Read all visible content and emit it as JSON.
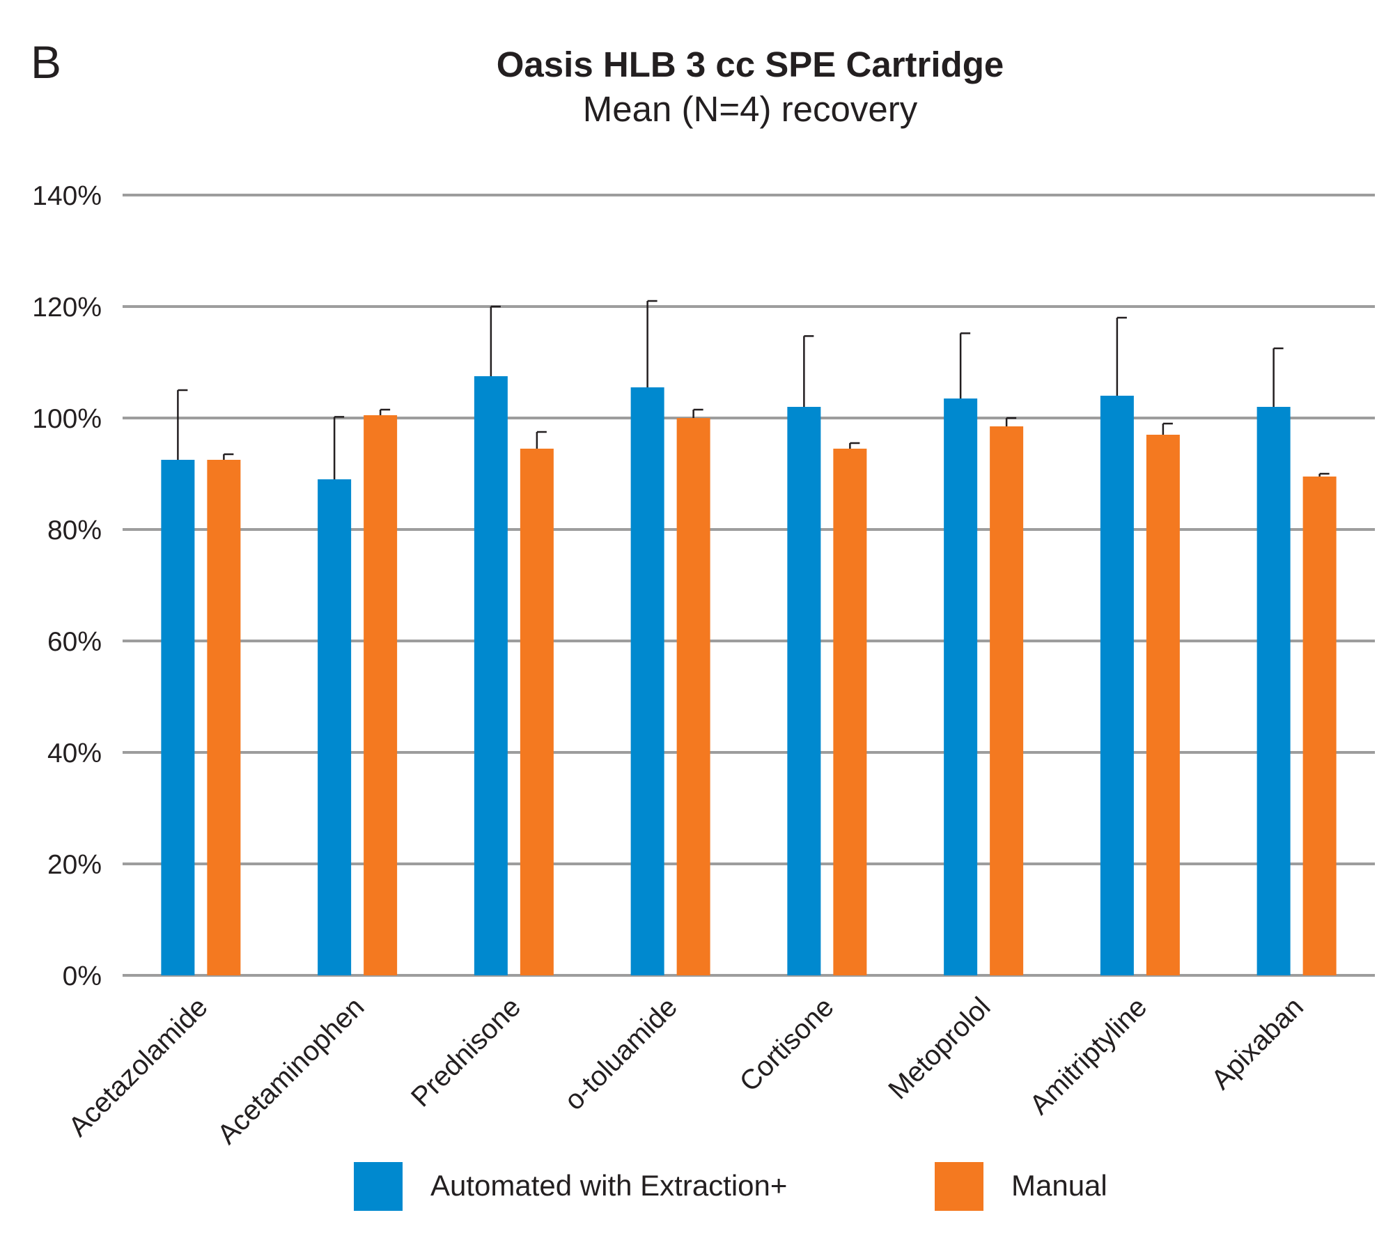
{
  "panel_label": "B",
  "chart_data": {
    "type": "bar",
    "title": "Oasis HLB 3 cc SPE Cartridge",
    "subtitle": "Mean (N=4) recovery",
    "xlabel": "",
    "ylabel": "",
    "ylim": [
      0,
      140
    ],
    "yticks": [
      0,
      20,
      40,
      60,
      80,
      100,
      120,
      140
    ],
    "ytick_labels": [
      "0%",
      "20%",
      "40%",
      "60%",
      "80%",
      "100%",
      "120%",
      "140%"
    ],
    "grid": "horizontal",
    "legend_position": "bottom",
    "categories": [
      "Acetazolamide",
      "Acetaminophen",
      "Prednisone",
      "o-toluamide",
      "Cortisone",
      "Metoprolol",
      "Amitriptyline",
      "Apixaban"
    ],
    "series": [
      {
        "name": "Automated with Extraction+",
        "color": "#0089cf",
        "values": [
          92.5,
          89,
          107.5,
          105.5,
          102,
          103.5,
          104,
          102
        ],
        "error": [
          12.5,
          11.2,
          12.5,
          15.5,
          12.7,
          11.7,
          14,
          10.5
        ]
      },
      {
        "name": "Manual",
        "color": "#f47920",
        "values": [
          92.5,
          100.5,
          94.5,
          100,
          94.5,
          98.5,
          97,
          89.5
        ],
        "error": [
          1,
          1,
          3,
          1.5,
          1,
          1.5,
          2,
          0.5
        ]
      }
    ]
  }
}
